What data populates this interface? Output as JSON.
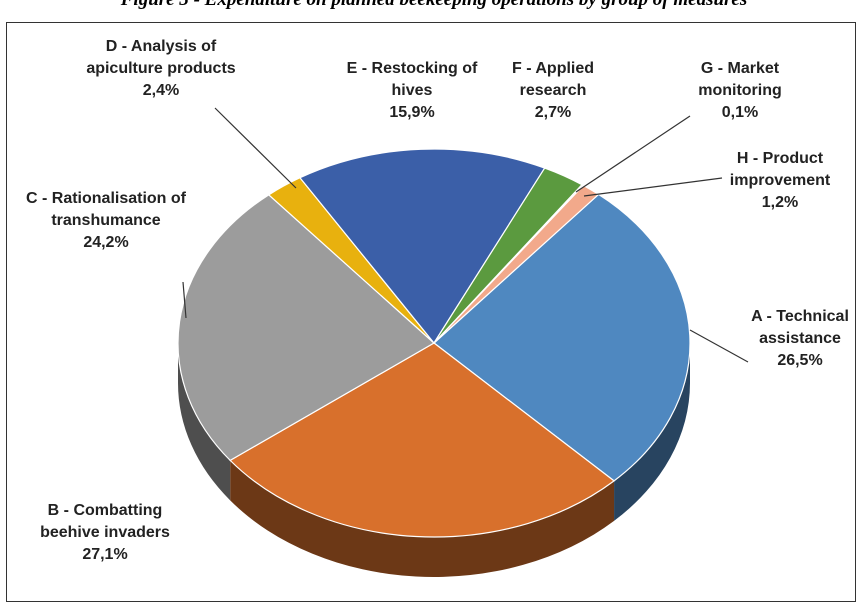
{
  "chart_data": {
    "type": "pie3d",
    "title": "Figure 3 - Expenditure on planned beekeeping operations by group of measures",
    "categories": [
      "A - Technical assistance",
      "B - Combatting beehive invaders",
      "C - Rationalisation of transhumance",
      "D - Analysis of apiculture products",
      "E - Restocking of hives",
      "F - Applied research",
      "G - Market monitoring",
      "H - Product improvement"
    ],
    "values": [
      26.5,
      27.1,
      24.2,
      2.4,
      15.9,
      2.7,
      0.1,
      1.2
    ],
    "value_labels": [
      "26,5%",
      "27,1%",
      "24,2%",
      "2,4%",
      "15,9%",
      "2,7%",
      "0,1%",
      "1,2%"
    ],
    "colors": [
      "#4f88c0",
      "#d8702c",
      "#9c9c9c",
      "#e8b10e",
      "#3b5fa8",
      "#5b9a3f",
      "#c8c8c8",
      "#f2a98b"
    ]
  }
}
